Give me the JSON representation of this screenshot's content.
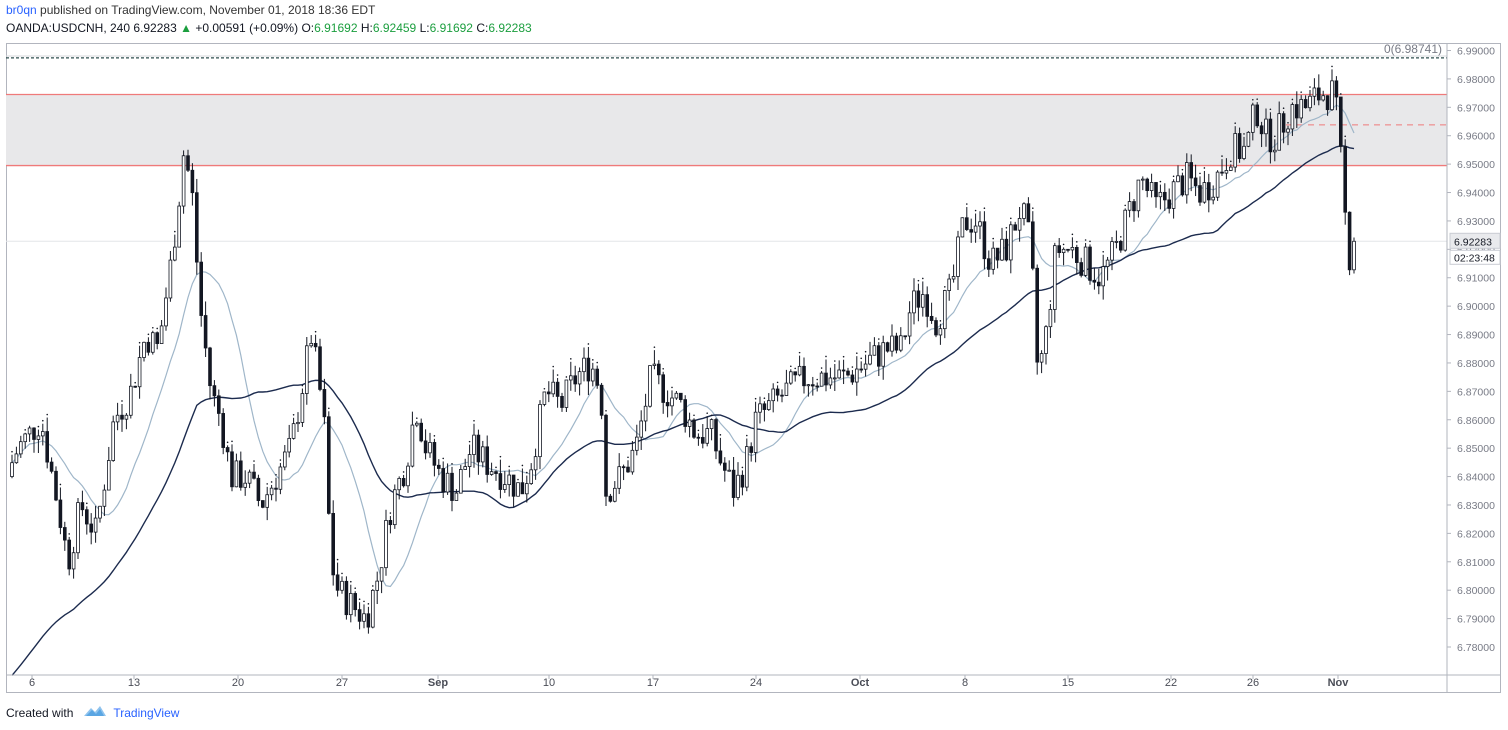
{
  "header": {
    "user": "br0qn",
    "published_text": "published on TradingView.com, November 01, 2018 18:36 EDT",
    "symbol": "OANDA:USDCNH, 240",
    "last": "6.92283",
    "change_arrow": "▲",
    "change": "+0.00591 (+0.09%)",
    "o_label": "O:",
    "o_value": "6.91692",
    "h_label": "H:",
    "h_value": "6.92459",
    "l_label": "L:",
    "l_value": "6.91692",
    "c_label": "C:",
    "c_value": "6.92283"
  },
  "footer": {
    "created_with": "Created with",
    "brand": "TradingView"
  },
  "colors": {
    "candle": "#131722",
    "ma_fast": "#9fb6c9",
    "ma_slow": "#1c2b4e",
    "zone_fill": "#e8e8ea",
    "zone_line": "#ef7a7a",
    "fib_line": "#2f4f4f"
  },
  "chart_data": {
    "type": "candlestick",
    "title": "",
    "ylim": [
      6.775,
      6.9905
    ],
    "y_ticks": [
      "6.99000",
      "6.98000",
      "6.97000",
      "6.96000",
      "6.95000",
      "6.94000",
      "6.93000",
      "6.92000",
      "6.91000",
      "6.90000",
      "6.89000",
      "6.88000",
      "6.87000",
      "6.86000",
      "6.85000",
      "6.84000",
      "6.83000",
      "6.82000",
      "6.81000",
      "6.80000",
      "6.79000",
      "6.78000"
    ],
    "x_ticks": [
      "6",
      "13",
      "20",
      "27",
      "Sep",
      "10",
      "17",
      "24",
      "Oct",
      "8",
      "15",
      "22",
      "26",
      "Nov"
    ],
    "price_label": "6.92283",
    "countdown_label": "02:23:48",
    "fib_label": "0(6.98741)",
    "fib_level": 6.98741,
    "zone": [
      6.9495,
      6.9745
    ],
    "dashed_level": 6.9638,
    "key_points": [
      {
        "date": "Aug 3",
        "close": 6.845
      },
      {
        "date": "Aug 7",
        "close": 6.81
      },
      {
        "date": "Aug 13",
        "close": 6.89
      },
      {
        "date": "Aug 15",
        "close": 6.955
      },
      {
        "date": "Aug 17",
        "close": 6.87
      },
      {
        "date": "Aug 20",
        "close": 6.84
      },
      {
        "date": "Aug 24",
        "close": 6.89
      },
      {
        "date": "Aug 27",
        "close": 6.8
      },
      {
        "date": "Aug 29",
        "close": 6.795
      },
      {
        "date": "Aug 31",
        "close": 6.855
      },
      {
        "date": "Sep 5",
        "close": 6.84
      },
      {
        "date": "Sep 11",
        "close": 6.875
      },
      {
        "date": "Sep 14",
        "close": 6.84
      },
      {
        "date": "Sep 18",
        "close": 6.87
      },
      {
        "date": "Sep 21",
        "close": 6.83
      },
      {
        "date": "Sep 25",
        "close": 6.865
      },
      {
        "date": "Oct 1",
        "close": 6.885
      },
      {
        "date": "Oct 5",
        "close": 6.9
      },
      {
        "date": "Oct 8",
        "close": 6.93
      },
      {
        "date": "Oct 11",
        "close": 6.875
      },
      {
        "date": "Oct 15",
        "close": 6.925
      },
      {
        "date": "Oct 18",
        "close": 6.945
      },
      {
        "date": "Oct 25",
        "close": 6.96
      },
      {
        "date": "Oct 30",
        "close": 6.975
      },
      {
        "date": "Nov 1",
        "close": 6.9228
      }
    ]
  }
}
